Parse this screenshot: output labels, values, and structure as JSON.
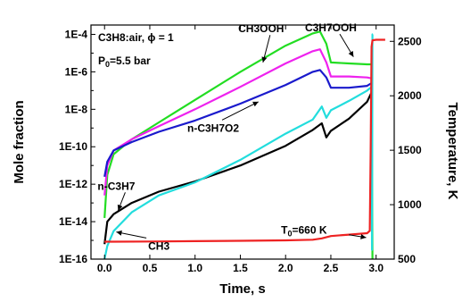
{
  "chart_data": {
    "type": "line",
    "xlabel": "Time, s",
    "ylabel": "Mole fraction",
    "y2label": "Temperature, K",
    "xlim": [
      -0.15,
      3.2
    ],
    "ylim_log": [
      -16,
      -3.5
    ],
    "y2lim": [
      500,
      2650
    ],
    "x_ticks": [
      "0.0",
      "0.5",
      "1.0",
      "1.5",
      "2.0",
      "2.5",
      "3.0"
    ],
    "x_tick_values": [
      0,
      0.5,
      1.0,
      1.5,
      2.0,
      2.5,
      3.0
    ],
    "y_ticks": [
      "1E-16",
      "1E-14",
      "1E-12",
      "1E-10",
      "1E-8",
      "1E-6",
      "1E-4"
    ],
    "y_tick_exponents": [
      -16,
      -14,
      -12,
      -10,
      -8,
      -6,
      -4
    ],
    "y2_ticks": [
      "500",
      "1000",
      "1500",
      "2000",
      "2500"
    ],
    "y2_tick_values": [
      500,
      1000,
      1500,
      2000,
      2500
    ],
    "annotations": {
      "mixture": "C3H8:air, ϕ = 1",
      "pressure_base": "P",
      "pressure_sub": "0",
      "pressure_rest": "=5.5 bar",
      "temp_base": "T",
      "temp_sub": "0",
      "temp_rest": "=660 K"
    },
    "series": [
      {
        "name": "CH3OOH",
        "color": "#22dd22",
        "axis": "left",
        "x": [
          0.0,
          0.03,
          0.1,
          0.3,
          0.6,
          1.0,
          1.5,
          2.0,
          2.3,
          2.38,
          2.45,
          2.5,
          2.7,
          2.9,
          2.95,
          2.96
        ],
        "y": [
          -13.8,
          -11.5,
          -10.4,
          -9.6,
          -8.7,
          -7.5,
          -6.0,
          -4.6,
          -3.95,
          -3.85,
          -4.5,
          -5.5,
          -5.55,
          -5.6,
          -5.6,
          -16.0
        ]
      },
      {
        "name": "C3H7OOH",
        "color": "#ee22ee",
        "axis": "left",
        "x": [
          0.0,
          0.03,
          0.1,
          0.3,
          0.6,
          1.0,
          1.5,
          2.0,
          2.3,
          2.38,
          2.45,
          2.5,
          2.7,
          2.9,
          2.95
        ],
        "y": [
          -12.6,
          -11.0,
          -10.2,
          -9.6,
          -8.9,
          -8.0,
          -6.8,
          -5.55,
          -4.9,
          -4.8,
          -5.5,
          -6.25,
          -6.25,
          -6.3,
          -6.35
        ]
      },
      {
        "name": "n-C3H7O2",
        "color": "#1a1acc",
        "axis": "left",
        "x": [
          0.0,
          0.03,
          0.1,
          0.3,
          0.6,
          1.0,
          1.5,
          2.0,
          2.3,
          2.38,
          2.45,
          2.5,
          2.7,
          2.9,
          2.95
        ],
        "y": [
          -11.6,
          -10.8,
          -10.2,
          -9.75,
          -9.2,
          -8.6,
          -7.7,
          -6.7,
          -6.0,
          -5.9,
          -6.3,
          -6.85,
          -6.85,
          -6.75,
          -6.6
        ]
      },
      {
        "name": "n-C3H7",
        "color": "#000000",
        "axis": "left",
        "x": [
          0.0,
          0.03,
          0.1,
          0.3,
          0.6,
          1.0,
          1.5,
          2.0,
          2.3,
          2.4,
          2.45,
          2.5,
          2.7,
          2.9,
          2.95
        ],
        "y": [
          -15.2,
          -14.0,
          -13.6,
          -13.0,
          -12.4,
          -11.85,
          -11.0,
          -9.95,
          -9.1,
          -8.75,
          -9.5,
          -9.15,
          -8.5,
          -7.6,
          -7.1
        ]
      },
      {
        "name": "CH3",
        "color": "#22dddd",
        "axis": "left",
        "x": [
          0.0,
          0.03,
          0.1,
          0.3,
          0.6,
          1.0,
          1.5,
          2.0,
          2.3,
          2.4,
          2.45,
          2.5,
          2.7,
          2.9,
          2.95,
          2.955,
          2.96,
          2.965
        ],
        "y": [
          -16.0,
          -15.3,
          -14.5,
          -13.5,
          -12.6,
          -11.9,
          -10.7,
          -9.3,
          -8.55,
          -7.85,
          -8.45,
          -8.05,
          -7.55,
          -7.0,
          -6.8,
          -15.5,
          -4.0,
          -4.0
        ]
      },
      {
        "name": "Temperature",
        "color": "#ee2222",
        "axis": "right",
        "x": [
          0.0,
          0.1,
          0.5,
          1.0,
          1.5,
          2.0,
          2.3,
          2.4,
          2.5,
          2.7,
          2.9,
          2.93,
          2.94,
          2.95,
          2.96,
          3.0,
          3.1
        ],
        "y": [
          660,
          660,
          662,
          665,
          668,
          672,
          678,
          690,
          712,
          725,
          738,
          760,
          1500,
          2450,
          2510,
          2515,
          2515
        ]
      }
    ],
    "labels": [
      {
        "text": "CH3OOH",
        "x": 1.73,
        "y": -3.7,
        "ax": 1.75,
        "ay": -5.5
      },
      {
        "text": "C3H7OOH",
        "x": 2.5,
        "y": -3.65,
        "ax": 2.75,
        "ay": -5.2
      },
      {
        "text": "n-C3H7O2",
        "x": 1.2,
        "y": -9.0,
        "ax": 1.7,
        "ay": -7.6
      },
      {
        "text": "n-C3H7",
        "x": 0.13,
        "y": -12.1,
        "ax": 0.15,
        "ay": -13.4
      },
      {
        "text": "CH3",
        "x": 0.6,
        "y": -15.3,
        "ax": 0.13,
        "ay": -14.55
      }
    ],
    "t0_arrow": {
      "x1": 2.7,
      "y1": -14.7,
      "x2": 2.89,
      "y2": -14.85
    }
  }
}
